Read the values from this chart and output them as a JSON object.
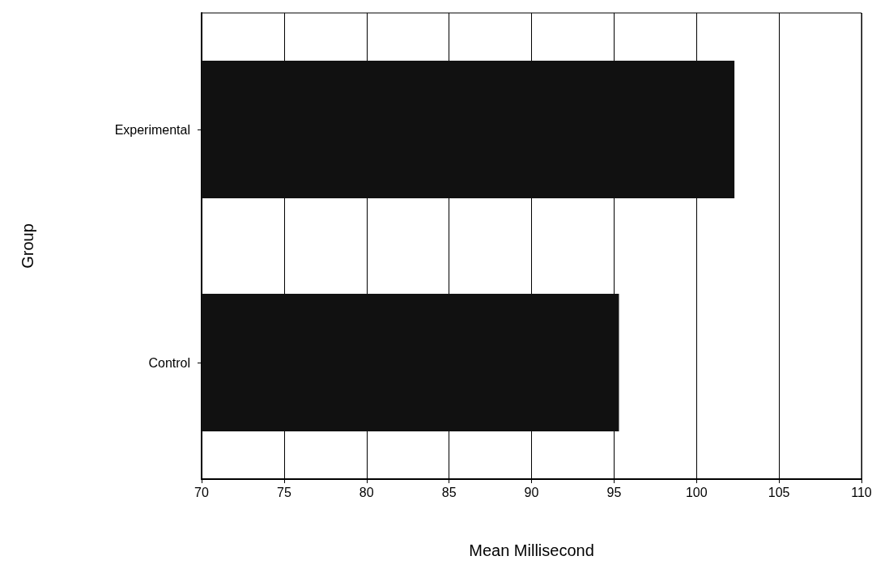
{
  "chart_data": {
    "type": "bar",
    "orientation": "horizontal",
    "xlabel": "Mean Millisecond",
    "ylabel": "Group",
    "categories": [
      "Experimental",
      "Control"
    ],
    "values": [
      102.3,
      95.3
    ],
    "color": "#111111",
    "xlim": [
      70,
      110
    ],
    "xticks": [
      70,
      75,
      80,
      85,
      90,
      95,
      100,
      105,
      110
    ],
    "grid": "x"
  }
}
